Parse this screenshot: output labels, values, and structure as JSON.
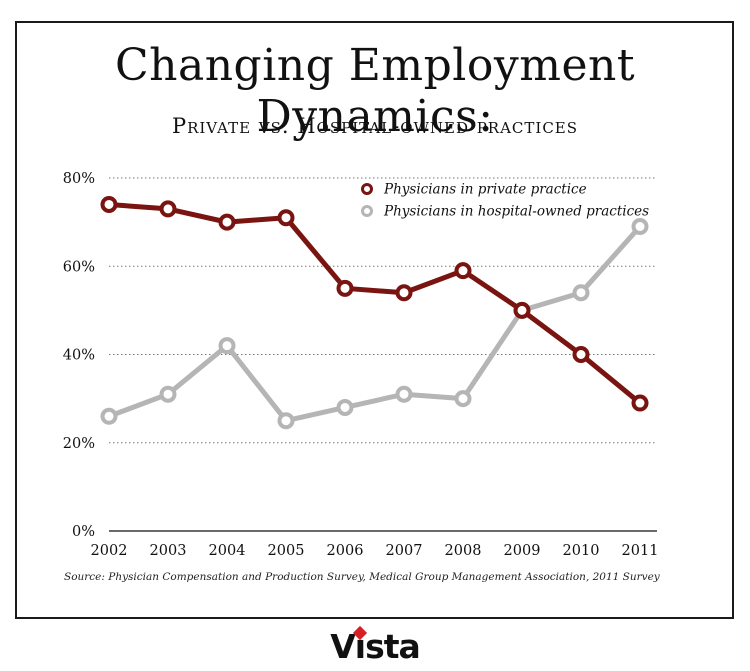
{
  "header": {
    "title": "Changing Employment Dynamics:",
    "subtitle": "Private vs. Hospital-owned practices"
  },
  "chart_data": {
    "type": "line",
    "categories": [
      "2002",
      "2003",
      "2004",
      "2005",
      "2006",
      "2007",
      "2008",
      "2009",
      "2010",
      "2011"
    ],
    "series": [
      {
        "name": "Physicians in private practice",
        "color": "#7a1410",
        "values": [
          74,
          73,
          70,
          71,
          55,
          54,
          59,
          50,
          40,
          29
        ]
      },
      {
        "name": "Physicians in hospital-owned practices",
        "color": "#b5b5b5",
        "values": [
          26,
          31,
          42,
          25,
          28,
          31,
          30,
          50,
          54,
          69
        ]
      }
    ],
    "ylim": [
      0,
      80
    ],
    "yticks": [
      0,
      20,
      40,
      60,
      80
    ],
    "ytick_labels": [
      "0%",
      "20%",
      "40%",
      "60%",
      "80%"
    ],
    "grid": true,
    "legend_position": "top-right"
  },
  "footer": {
    "source": "Source: Physician Compensation and Production Survey, Medical Group Management Association, 2011 Survey",
    "logo": {
      "before_i": "V",
      "i": "ı",
      "after_i": "sta",
      "dot_color": "#d71f26"
    }
  }
}
